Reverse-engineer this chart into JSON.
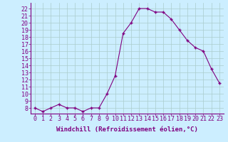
{
  "x": [
    0,
    1,
    2,
    3,
    4,
    5,
    6,
    7,
    8,
    9,
    10,
    11,
    12,
    13,
    14,
    15,
    16,
    17,
    18,
    19,
    20,
    21,
    22,
    23
  ],
  "y": [
    8,
    7.5,
    8,
    8.5,
    8,
    8,
    7.5,
    8,
    8,
    10,
    12.5,
    18.5,
    20,
    22,
    22,
    21.5,
    21.5,
    20.5,
    19,
    17.5,
    16.5,
    16,
    13.5,
    11.5
  ],
  "line_color": "#800080",
  "marker": "+",
  "marker_size": 3.5,
  "bg_color": "#cceeff",
  "grid_color": "#aacccc",
  "xlabel": "Windchill (Refroidissement éolien,°C)",
  "xlabel_fontsize": 6.5,
  "yticks": [
    8,
    9,
    10,
    11,
    12,
    13,
    14,
    15,
    16,
    17,
    18,
    19,
    20,
    21,
    22
  ],
  "xlim": [
    -0.5,
    23.5
  ],
  "ylim": [
    7.2,
    22.8
  ],
  "tick_fontsize": 6,
  "spine_color": "#800080"
}
